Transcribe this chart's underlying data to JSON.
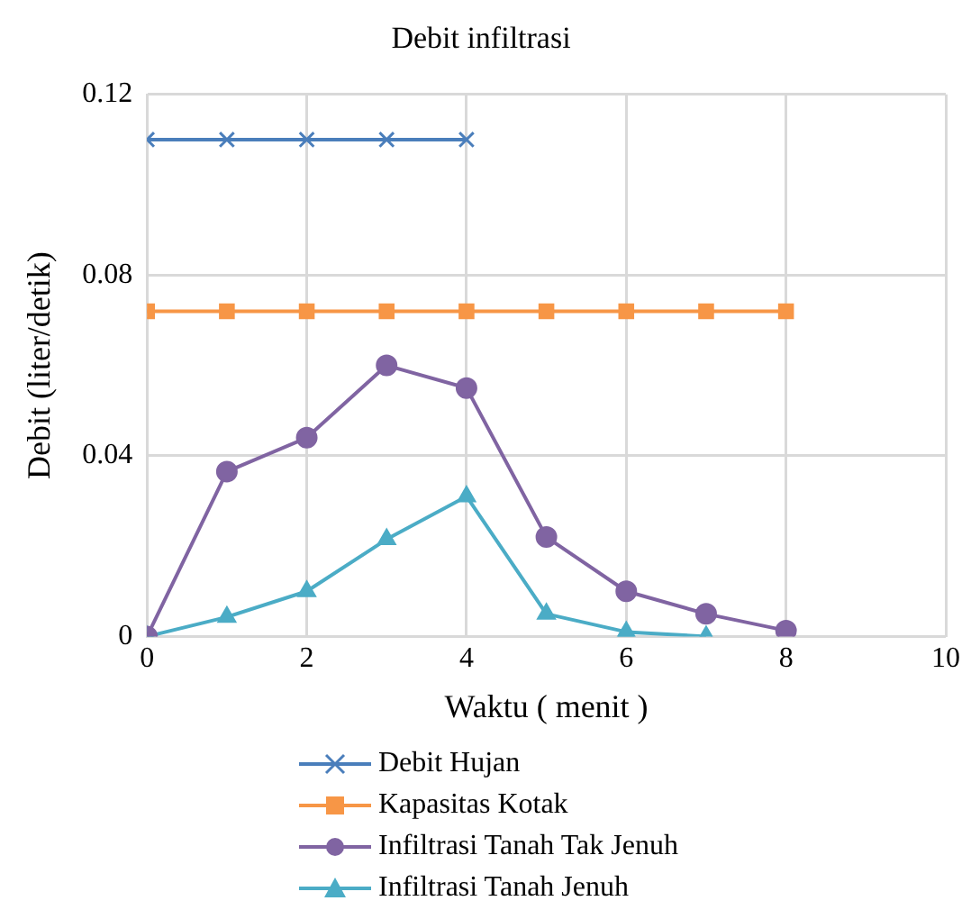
{
  "chart_data": {
    "type": "line",
    "title": "Debit infiltrasi",
    "xlabel": "Waktu ( menit )",
    "ylabel": "Debit (liter/detik)",
    "xlim": [
      0,
      10
    ],
    "xticks": [
      0,
      2,
      4,
      6,
      8,
      10
    ],
    "ylim": [
      0,
      0.12
    ],
    "yticks": [
      0,
      0.04,
      0.08,
      0.12
    ],
    "grid": true,
    "legend": "bottom",
    "line_style": "solid",
    "series": [
      {
        "name": "Debit Hujan",
        "color": "#4a7ebb",
        "marker": "cross",
        "x": [
          0,
          1,
          2,
          3,
          4
        ],
        "values": [
          0.11,
          0.11,
          0.11,
          0.11,
          0.11
        ]
      },
      {
        "name": "Kapasitas Kotak",
        "color": "#f79646",
        "marker": "square",
        "x": [
          0,
          1,
          2,
          3,
          4,
          5,
          6,
          7,
          8
        ],
        "values": [
          0.072,
          0.072,
          0.072,
          0.072,
          0.072,
          0.072,
          0.072,
          0.072,
          0.072
        ]
      },
      {
        "name": "Infiltrasi Tanah Tak Jenuh",
        "color": "#8064a2",
        "marker": "circle",
        "x": [
          0,
          1,
          2,
          3,
          4,
          5,
          6,
          7,
          8
        ],
        "values": [
          0,
          0.0365,
          0.044,
          0.06,
          0.055,
          0.022,
          0.01,
          0.005,
          0.0013
        ]
      },
      {
        "name": "Infiltrasi Tanah Jenuh",
        "color": "#4bacc6",
        "marker": "triangle",
        "x": [
          0,
          1,
          2,
          3,
          4,
          5,
          6,
          7
        ],
        "values": [
          0,
          0.0043,
          0.01,
          0.0215,
          0.031,
          0.005,
          0.001,
          0
        ]
      }
    ]
  }
}
